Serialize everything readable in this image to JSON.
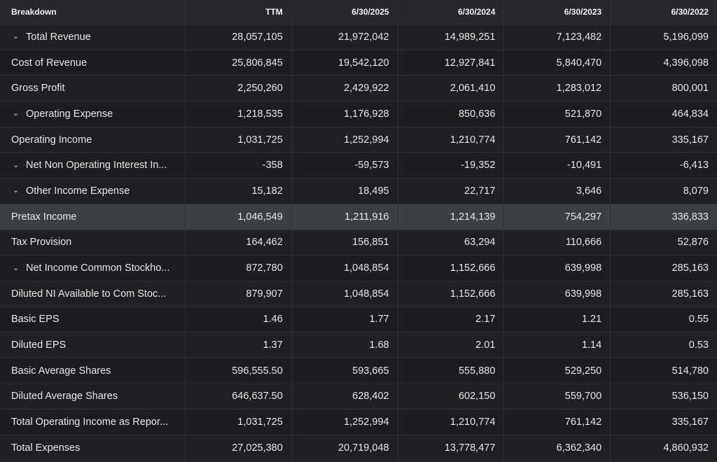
{
  "header": {
    "breakdown": "Breakdown",
    "columns": [
      "TTM",
      "6/30/2025",
      "6/30/2024",
      "6/30/2023",
      "6/30/2022"
    ]
  },
  "rows": [
    {
      "label": "Total Revenue",
      "expand": "⌄",
      "values": [
        "28,057,105",
        "21,972,042",
        "14,989,251",
        "7,123,482",
        "5,196,099"
      ]
    },
    {
      "label": "Cost of Revenue",
      "expand": "",
      "values": [
        "25,806,845",
        "19,542,120",
        "12,927,841",
        "5,840,470",
        "4,396,098"
      ]
    },
    {
      "label": "Gross Profit",
      "expand": "",
      "values": [
        "2,250,260",
        "2,429,922",
        "2,061,410",
        "1,283,012",
        "800,001"
      ]
    },
    {
      "label": "Operating Expense",
      "expand": "⌄",
      "values": [
        "1,218,535",
        "1,176,928",
        "850,636",
        "521,870",
        "464,834"
      ]
    },
    {
      "label": "Operating Income",
      "expand": "",
      "values": [
        "1,031,725",
        "1,252,994",
        "1,210,774",
        "761,142",
        "335,167"
      ]
    },
    {
      "label": "Net Non Operating Interest In...",
      "expand": "⌄",
      "values": [
        "-358",
        "-59,573",
        "-19,352",
        "-10,491",
        "-6,413"
      ]
    },
    {
      "label": "Other Income Expense",
      "expand": "⌄",
      "values": [
        "15,182",
        "18,495",
        "22,717",
        "3,646",
        "8,079"
      ]
    },
    {
      "label": "Pretax Income",
      "expand": "",
      "values": [
        "1,046,549",
        "1,211,916",
        "1,214,139",
        "754,297",
        "336,833"
      ]
    },
    {
      "label": "Tax Provision",
      "expand": "",
      "values": [
        "164,462",
        "156,851",
        "63,294",
        "110,666",
        "52,876"
      ]
    },
    {
      "label": "Net Income Common Stockho...",
      "expand": "⌄",
      "values": [
        "872,780",
        "1,048,854",
        "1,152,666",
        "639,998",
        "285,163"
      ]
    },
    {
      "label": "Diluted NI Available to Com Stoc...",
      "expand": "",
      "values": [
        "879,907",
        "1,048,854",
        "1,152,666",
        "639,998",
        "285,163"
      ]
    },
    {
      "label": "Basic EPS",
      "expand": "",
      "values": [
        "1.46",
        "1.77",
        "2.17",
        "1.21",
        "0.55"
      ]
    },
    {
      "label": "Diluted EPS",
      "expand": "",
      "values": [
        "1.37",
        "1.68",
        "2.01",
        "1.14",
        "0.53"
      ]
    },
    {
      "label": "Basic Average Shares",
      "expand": "",
      "values": [
        "596,555.50",
        "593,665",
        "555,880",
        "529,250",
        "514,780"
      ]
    },
    {
      "label": "Diluted Average Shares",
      "expand": "",
      "values": [
        "646,637.50",
        "628,402",
        "602,150",
        "559,700",
        "536,150"
      ]
    },
    {
      "label": "Total Operating Income as Repor...",
      "expand": "",
      "values": [
        "1,031,725",
        "1,252,994",
        "1,210,774",
        "761,142",
        "335,167"
      ]
    },
    {
      "label": "Total Expenses",
      "expand": "",
      "values": [
        "27,025,380",
        "20,719,048",
        "13,778,477",
        "6,362,340",
        "4,860,932"
      ]
    }
  ],
  "highlighted_row": "Pretax Income",
  "colors": {
    "background": "#1b1c1f",
    "header": "#26282c",
    "highlight": "#3b4044",
    "text": "#e6e6e6"
  },
  "icons": {
    "expand": "chevron-down-icon"
  }
}
